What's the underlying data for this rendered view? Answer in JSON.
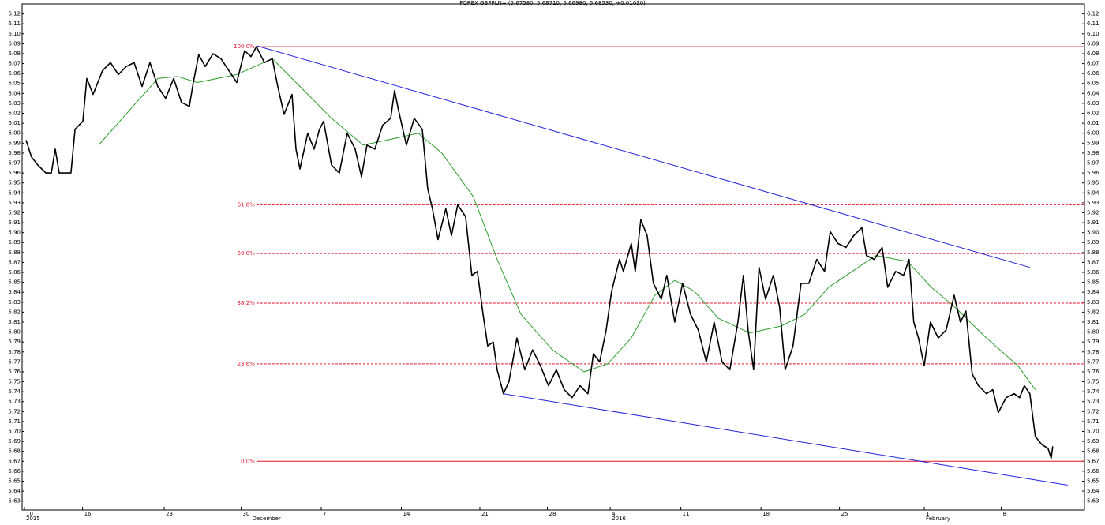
{
  "chart_data": {
    "type": "line",
    "title": "FOREX GBPPLN= (5.67580, 5.68710, 5.66980, 5.68530, +0.01030)",
    "xlim": [
      -0.15,
      67.5
    ],
    "ylim": [
      5.621,
      6.13
    ],
    "xticks": [
      {
        "value": 0,
        "label": "10"
      },
      {
        "value": 3.7,
        "label": "16"
      },
      {
        "value": 8.9,
        "label": "23"
      },
      {
        "value": 13.8,
        "label": "30"
      },
      {
        "value": 18.9,
        "label": "7"
      },
      {
        "value": 24.0,
        "label": "14"
      },
      {
        "value": 29.0,
        "label": "21"
      },
      {
        "value": 33.3,
        "label": "28"
      },
      {
        "value": 37.3,
        "label": "4"
      },
      {
        "value": 41.8,
        "label": "11"
      },
      {
        "value": 46.9,
        "label": "18"
      },
      {
        "value": 51.9,
        "label": "25"
      },
      {
        "value": 57.3,
        "label": "1"
      },
      {
        "value": 62.2,
        "label": "8"
      }
    ],
    "period_labels": [
      {
        "value": 0,
        "label": "2015"
      },
      {
        "value": 14.4,
        "label": "December"
      },
      {
        "value": 37.3,
        "label": "2016"
      },
      {
        "value": 57.3,
        "label": "February"
      }
    ],
    "yticks": [
      6.12,
      6.11,
      {
        "value": 6.1,
        "label": "6.10"
      },
      6.09,
      6.08,
      6.07,
      6.06,
      6.05,
      6.04,
      6.03,
      6.02,
      6.01,
      {
        "value": 6,
        "label": "6.00"
      },
      5.99,
      5.98,
      5.97,
      5.96,
      5.95,
      5.94,
      5.93,
      5.92,
      5.91,
      {
        "value": 5.9,
        "label": "5.90"
      },
      5.89,
      5.88,
      5.87,
      5.86,
      5.85,
      5.84,
      5.83,
      5.82,
      5.81,
      {
        "value": 5.8,
        "label": "5.80"
      },
      5.79,
      5.78,
      5.77,
      5.76,
      5.75,
      5.74,
      5.73,
      5.72,
      5.71,
      {
        "value": 5.7,
        "label": "5.70"
      },
      5.69,
      5.68,
      5.67,
      5.66,
      5.65,
      5.64,
      5.63
    ],
    "levels_color": "#e8102a",
    "levels": [
      {
        "label": "100.0%",
        "value": 6.087,
        "dashed": false
      },
      {
        "label": "61.8%",
        "value": 5.928,
        "dashed": true
      },
      {
        "label": "50.0%",
        "value": 5.879,
        "dashed": true
      },
      {
        "label": "38.2%",
        "value": 5.829,
        "dashed": true
      },
      {
        "label": "23.6%",
        "value": 5.768,
        "dashed": true
      },
      {
        "label": "0.0%",
        "value": 5.67,
        "dashed": false
      }
    ],
    "series": [
      {
        "color": "#000000",
        "width": 1.6,
        "x": [
          0.1,
          0.45,
          0.85,
          1.36,
          1.71,
          1.96,
          2.21,
          2.96,
          3.22,
          3.72,
          3.97,
          4.37,
          4.97,
          5.48,
          5.98,
          6.48,
          6.98,
          7.49,
          7.99,
          8.49,
          8.99,
          9.5,
          10.0,
          10.5,
          10.75,
          11.1,
          11.51,
          12.01,
          12.51,
          13.02,
          13.52,
          14.02,
          14.42,
          14.77,
          15.28,
          15.78,
          16.13,
          16.53,
          17.04,
          17.29,
          17.54,
          18.04,
          18.44,
          18.79,
          19.05,
          19.55,
          20.05,
          20.55,
          21.06,
          21.46,
          21.81,
          22.31,
          22.81,
          23.32,
          23.57,
          23.82,
          24.32,
          24.82,
          25.33,
          25.68,
          25.98,
          26.33,
          26.83,
          27.19,
          27.59,
          28.09,
          28.49,
          28.84,
          29.2,
          29.5,
          29.85,
          30.1,
          30.5,
          30.85,
          31.36,
          31.86,
          32.36,
          32.86,
          33.37,
          33.87,
          34.37,
          34.87,
          35.38,
          35.88,
          36.23,
          36.63,
          37.04,
          37.39,
          37.89,
          38.14,
          38.64,
          38.89,
          39.25,
          39.65,
          40.05,
          40.55,
          40.9,
          41.41,
          41.91,
          42.41,
          42.91,
          43.42,
          43.92,
          44.42,
          44.92,
          45.43,
          45.78,
          46.08,
          46.43,
          46.78,
          47.19,
          47.69,
          48.09,
          48.44,
          48.94,
          49.45,
          49.95,
          50.45,
          50.95,
          51.31,
          51.81,
          52.31,
          52.81,
          53.32,
          53.62,
          54.12,
          54.62,
          54.97,
          55.48,
          55.98,
          56.33,
          56.63,
          56.93,
          57.29,
          57.69,
          58.19,
          58.69,
          59.2,
          59.6,
          59.95,
          60.35,
          60.75,
          61.26,
          61.66,
          62.01,
          62.51,
          63.02,
          63.37,
          63.67,
          64.02,
          64.37,
          64.77,
          65.18,
          65.38,
          65.48
        ],
        "values": [
          5.993,
          5.976,
          5.968,
          5.96,
          5.96,
          5.984,
          5.96,
          5.96,
          6.004,
          6.012,
          6.055,
          6.039,
          6.063,
          6.071,
          6.059,
          6.067,
          6.071,
          6.047,
          6.071,
          6.047,
          6.035,
          6.055,
          6.031,
          6.027,
          6.051,
          6.079,
          6.067,
          6.08,
          6.075,
          6.063,
          6.051,
          6.083,
          6.077,
          6.087,
          6.071,
          6.075,
          6.047,
          6.019,
          6.039,
          5.984,
          5.964,
          6.0,
          5.984,
          6.004,
          6.012,
          5.968,
          5.96,
          6.0,
          5.984,
          5.956,
          5.988,
          5.984,
          6.008,
          6.015,
          6.043,
          6.023,
          5.988,
          6.015,
          6.004,
          5.944,
          5.924,
          5.893,
          5.924,
          5.897,
          5.928,
          5.916,
          5.857,
          5.861,
          5.818,
          5.786,
          5.79,
          5.762,
          5.738,
          5.75,
          5.794,
          5.762,
          5.782,
          5.766,
          5.746,
          5.762,
          5.742,
          5.734,
          5.746,
          5.738,
          5.778,
          5.77,
          5.802,
          5.841,
          5.873,
          5.861,
          5.889,
          5.861,
          5.913,
          5.897,
          5.849,
          5.833,
          5.857,
          5.81,
          5.849,
          5.818,
          5.802,
          5.77,
          5.81,
          5.77,
          5.762,
          5.81,
          5.857,
          5.802,
          5.762,
          5.865,
          5.833,
          5.857,
          5.825,
          5.762,
          5.786,
          5.849,
          5.849,
          5.873,
          5.861,
          5.901,
          5.889,
          5.885,
          5.897,
          5.905,
          5.877,
          5.873,
          5.885,
          5.845,
          5.861,
          5.857,
          5.873,
          5.81,
          5.794,
          5.766,
          5.81,
          5.794,
          5.802,
          5.837,
          5.81,
          5.821,
          5.758,
          5.746,
          5.738,
          5.742,
          5.719,
          5.734,
          5.738,
          5.734,
          5.746,
          5.738,
          5.695,
          5.687,
          5.683,
          5.673,
          5.685
        ]
      },
      {
        "color": "#2e9e2e",
        "width": 1,
        "x": [
          4.72,
          8.49,
          9.75,
          11.01,
          13.52,
          15.78,
          17.54,
          19.55,
          21.56,
          23.07,
          25.08,
          26.58,
          28.59,
          30.1,
          31.61,
          33.62,
          35.63,
          37.14,
          38.64,
          40.15,
          41.41,
          42.66,
          44.17,
          46.18,
          48.19,
          49.7,
          51.21,
          52.71,
          54.22,
          56.23,
          57.74,
          59.25,
          61.26,
          63.27,
          64.37
        ],
        "values": [
          5.988,
          6.055,
          6.057,
          6.051,
          6.059,
          6.075,
          6.047,
          6.015,
          5.988,
          5.993,
          6.0,
          5.98,
          5.936,
          5.873,
          5.818,
          5.782,
          5.76,
          5.768,
          5.794,
          5.837,
          5.852,
          5.841,
          5.814,
          5.799,
          5.806,
          5.818,
          5.845,
          5.861,
          5.877,
          5.871,
          5.845,
          5.825,
          5.794,
          5.766,
          5.742
        ]
      },
      {
        "color": "#2222dd",
        "width": 1,
        "x": [
          14.77,
          64.02
        ],
        "values": [
          6.088,
          5.865
        ]
      },
      {
        "color": "#2222dd",
        "width": 1,
        "x": [
          30.5,
          66.43
        ],
        "values": [
          5.738,
          5.646
        ]
      }
    ]
  }
}
